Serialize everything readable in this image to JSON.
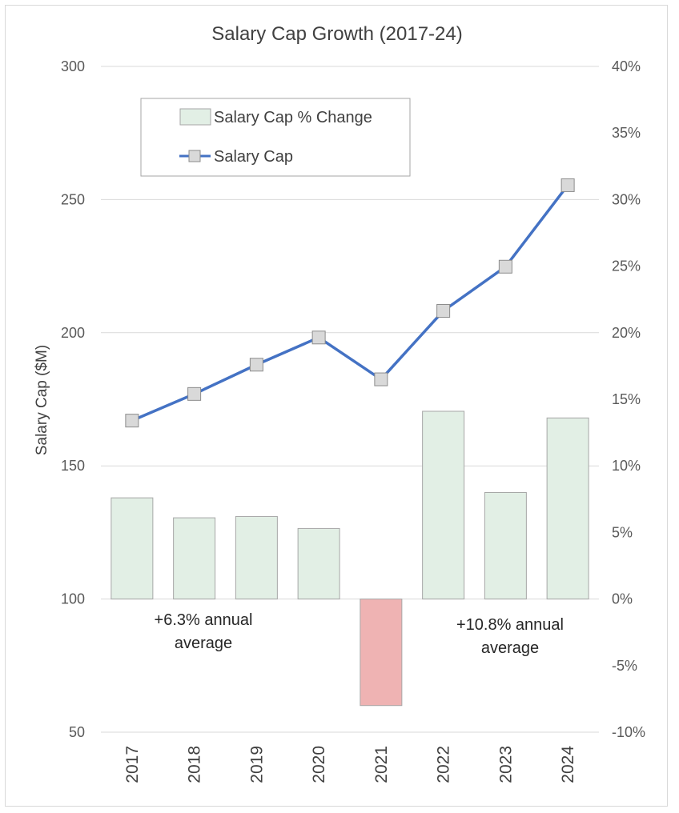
{
  "chart_data": {
    "type": "bar+line",
    "title": "Salary Cap Growth (2017-24)",
    "categories": [
      "2017",
      "2018",
      "2019",
      "2020",
      "2021",
      "2022",
      "2023",
      "2024"
    ],
    "series": [
      {
        "name": "Salary Cap % Change",
        "type": "bar",
        "axis": "right",
        "values": [
          7.6,
          6.1,
          6.2,
          5.3,
          -8.0,
          14.1,
          8.0,
          13.6
        ],
        "colors": {
          "positive": "#e2efe5",
          "negative": "#efb3b3",
          "border": "#a6a6a6"
        }
      },
      {
        "name": "Salary Cap",
        "type": "line",
        "axis": "left",
        "values": [
          167,
          177,
          188,
          198.2,
          182.5,
          208.2,
          224.8,
          255.4
        ],
        "colors": {
          "line": "#4472c4",
          "marker": "#d9d9d9",
          "marker_border": "#8c8c8c"
        }
      }
    ],
    "left_axis": {
      "label": "Salary Cap ($M)",
      "min": 50,
      "max": 300,
      "ticks": [
        300,
        250,
        200,
        150,
        100,
        50
      ],
      "tick_labels": [
        "300",
        "250",
        "200",
        "150",
        "100",
        "50"
      ]
    },
    "right_axis": {
      "min": -10,
      "max": 40,
      "tick_labels": [
        "40%",
        "35%",
        "30%",
        "25%",
        "20%",
        "15%",
        "10%",
        "5%",
        "0%",
        "-5%",
        "-10%"
      ]
    },
    "legend": {
      "placement": "top-left",
      "entries": [
        "Salary Cap % Change",
        "Salary Cap"
      ]
    },
    "annotations": {
      "left": [
        "+6.3% annual",
        "average"
      ],
      "right": [
        "+10.8% annual",
        "average"
      ]
    },
    "grid": true
  }
}
